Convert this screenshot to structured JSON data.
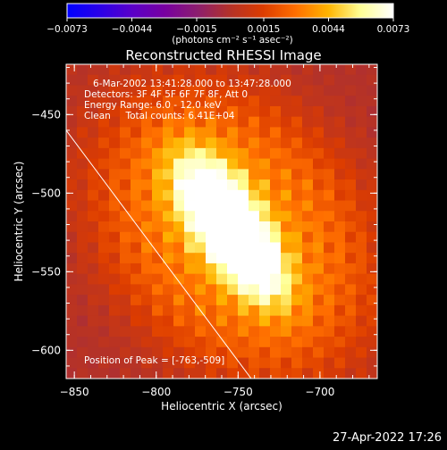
{
  "chart_data": {
    "type": "heatmap",
    "title": "Reconstructed RHESSI Image",
    "xlabel": "Heliocentric X (arcsec)",
    "ylabel": "Heliocentric Y (arcsec)",
    "xlim": [
      -855,
      -665
    ],
    "ylim": [
      -618,
      -418
    ],
    "x_ticks": [
      -850,
      -800,
      -750,
      -700
    ],
    "x_tick_labels": [
      "−850",
      "−800",
      "−750",
      "−700"
    ],
    "y_ticks": [
      -450,
      -500,
      -550,
      -600
    ],
    "y_tick_labels": [
      "−450",
      "−500",
      "−550",
      "−600"
    ],
    "colorbar": {
      "range": [
        -0.0073,
        0.0073
      ],
      "ticks": [
        -0.0073,
        -0.0044,
        -0.0015,
        0.0015,
        0.0044,
        0.0073
      ],
      "tick_labels": [
        "−0.0073",
        "−0.0044",
        "−0.0015",
        "0.0015",
        "0.0044",
        "0.0073"
      ],
      "unit_label": "(photons cm⁻² s⁻¹ asec⁻²)",
      "colors": [
        "#0000ff",
        "#2a00e8",
        "#5a00c8",
        "#7800a0",
        "#8c1e6e",
        "#b43228",
        "#dc3c00",
        "#ff6e00",
        "#ffb400",
        "#ffff96",
        "#ffffff"
      ]
    },
    "annotations": [
      "6-Mar-2002 13:41:28.000 to 13:47:28.000",
      "Detectors: 3F 4F 5F 6F 7F 8F, Att 0",
      "Energy Range: 6.0 - 12.0 keV",
      "Clean     Total counts: 6.41E+04"
    ],
    "peak_label": "Position of Peak = [-763,-509]",
    "peak": {
      "x": -763,
      "y": -509
    },
    "sources": [
      {
        "x": -763,
        "y": -509,
        "peak": 0.0073
      },
      {
        "x": -742,
        "y": -542,
        "peak": 0.0058
      }
    ],
    "limb_line": {
      "x": [
        -855,
        -742
      ],
      "y": [
        -460,
        -618
      ]
    },
    "grid": false
  },
  "timestamp": "27-Apr-2022 17:26"
}
